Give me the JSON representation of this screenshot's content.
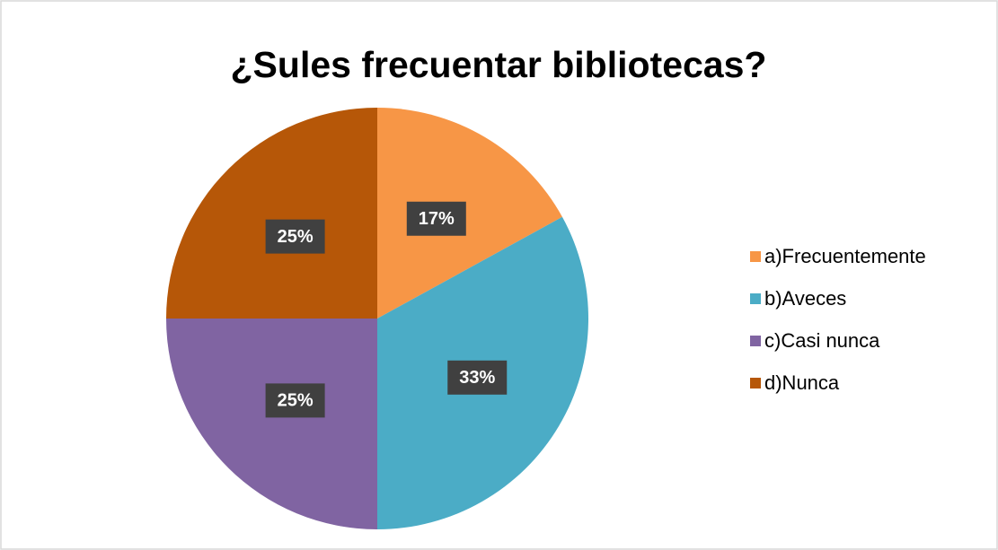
{
  "chart_data": {
    "type": "pie",
    "title": "¿Sules frecuentar bibliotecas?",
    "categories": [
      "a)Frecuentemente",
      "b)Aveces",
      "c)Casi nunca",
      "d)Nunca"
    ],
    "values": [
      17,
      33,
      25,
      25
    ],
    "value_labels": [
      "17%",
      "33%",
      "25%",
      "25%"
    ],
    "colors": [
      "#f79646",
      "#4bacc6",
      "#8064a2",
      "#b65708"
    ],
    "legend": "right"
  }
}
